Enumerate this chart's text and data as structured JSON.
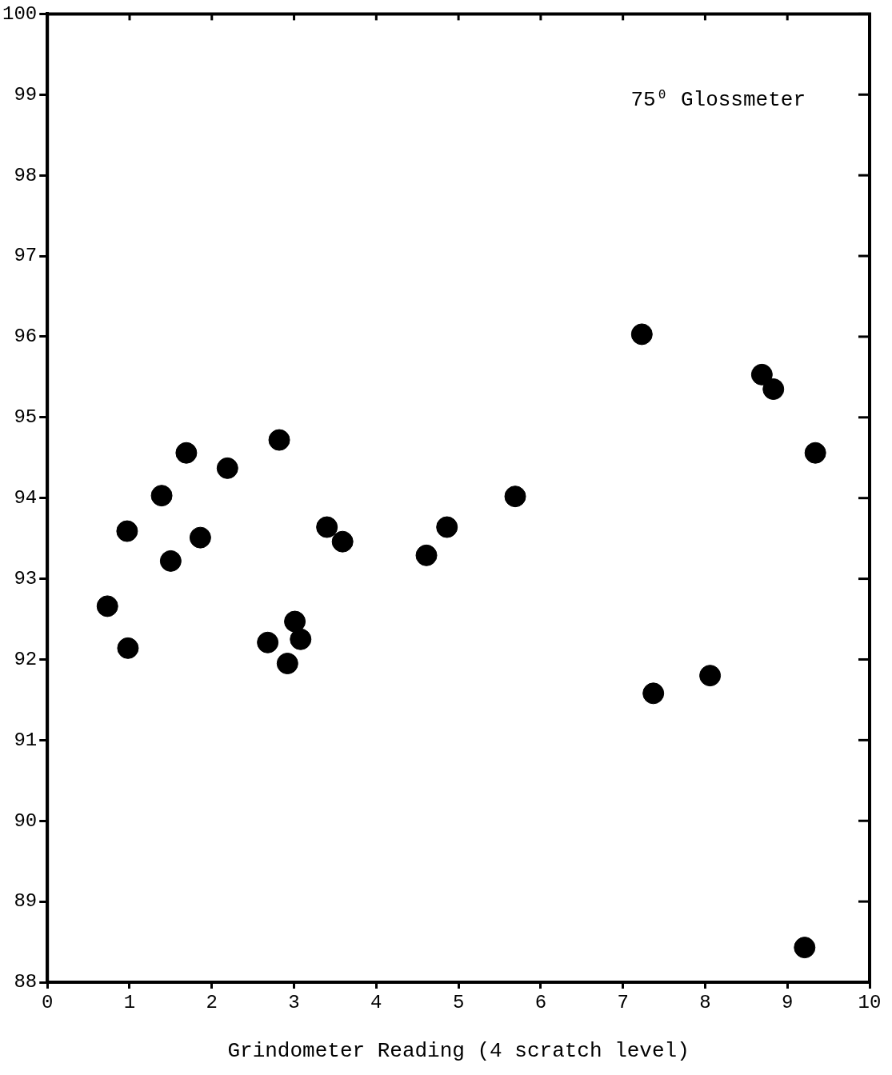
{
  "chart_data": {
    "type": "scatter",
    "xlabel": "Grindometer Reading (4 scratch level)",
    "annotations": [
      "75⁰ Glossmeter"
    ],
    "x": [
      1.69,
      2.19,
      2.82,
      1.39,
      0.97,
      1.86,
      1.5,
      3.4,
      3.59,
      0.73,
      0.98,
      3.01,
      3.08,
      2.68,
      2.92,
      7.23,
      8.69,
      8.83,
      9.34,
      5.69,
      4.86,
      4.61,
      8.06,
      7.37,
      9.21
    ],
    "values": [
      94.56,
      94.37,
      94.72,
      94.03,
      93.59,
      93.51,
      93.22,
      93.64,
      93.46,
      92.66,
      92.14,
      92.47,
      92.25,
      92.21,
      91.95,
      96.03,
      95.53,
      95.35,
      94.56,
      94.02,
      93.64,
      93.29,
      91.8,
      91.58,
      88.43
    ],
    "color": "#000000",
    "marker": "circle",
    "xlim": [
      0,
      10
    ],
    "xticks": [
      0,
      1,
      2,
      3,
      4,
      5,
      6,
      7,
      8,
      9,
      10
    ],
    "ylim": [
      88,
      100
    ],
    "yticks": [
      88,
      89,
      90,
      91,
      92,
      93,
      94,
      95,
      96,
      97,
      98,
      99,
      100
    ]
  }
}
